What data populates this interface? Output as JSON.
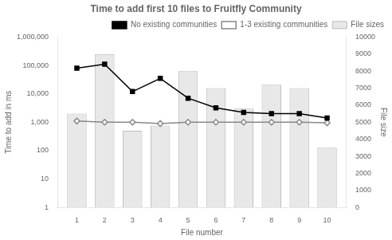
{
  "chart_data": {
    "type": "bar",
    "title": "Time to add first 10 files to Fruitfly Community",
    "xlabel": "File number",
    "ylabel": "Time to add in ms",
    "y2label": "File size",
    "x": [
      1,
      2,
      3,
      4,
      5,
      6,
      7,
      8,
      9,
      10
    ],
    "series": [
      {
        "name": "File sizes",
        "type": "bar",
        "axis": "y2",
        "color": "#e8e8e8",
        "values": [
          5500,
          9000,
          4500,
          4800,
          8000,
          7000,
          5800,
          7200,
          7000,
          3500
        ]
      },
      {
        "name": "No existing communities",
        "type": "line",
        "color": "#000000",
        "marker": "square",
        "line_style": "solid",
        "values": [
          80000,
          110000,
          12000,
          35000,
          7000,
          3200,
          2200,
          2000,
          2000,
          1400
        ]
      },
      {
        "name": "1-3 existing communities",
        "type": "line",
        "color": "#888888",
        "marker": "diamond",
        "line_style": "solid",
        "values": [
          1100,
          1000,
          1000,
          900,
          1000,
          1000,
          1000,
          1000,
          1000,
          950
        ]
      }
    ],
    "xlim": [
      0.3,
      10.7
    ],
    "xticks": [
      1,
      2,
      3,
      4,
      5,
      6,
      7,
      8,
      9,
      10
    ],
    "log": "y",
    "ylim": [
      1,
      1000000
    ],
    "yticks": [
      1,
      10,
      100,
      {
        "value": 1000,
        "label": "1,000"
      },
      {
        "value": 10000,
        "label": "10,000"
      },
      {
        "value": 100000,
        "label": "100,000"
      },
      {
        "value": 1000000,
        "label": "1,000,000"
      }
    ],
    "y2lim": [
      0,
      10000
    ],
    "y2ticks": [
      0,
      1000,
      2000,
      3000,
      4000,
      5000,
      6000,
      7000,
      8000,
      9000,
      10000
    ],
    "grid": false,
    "legend": "upper right"
  }
}
